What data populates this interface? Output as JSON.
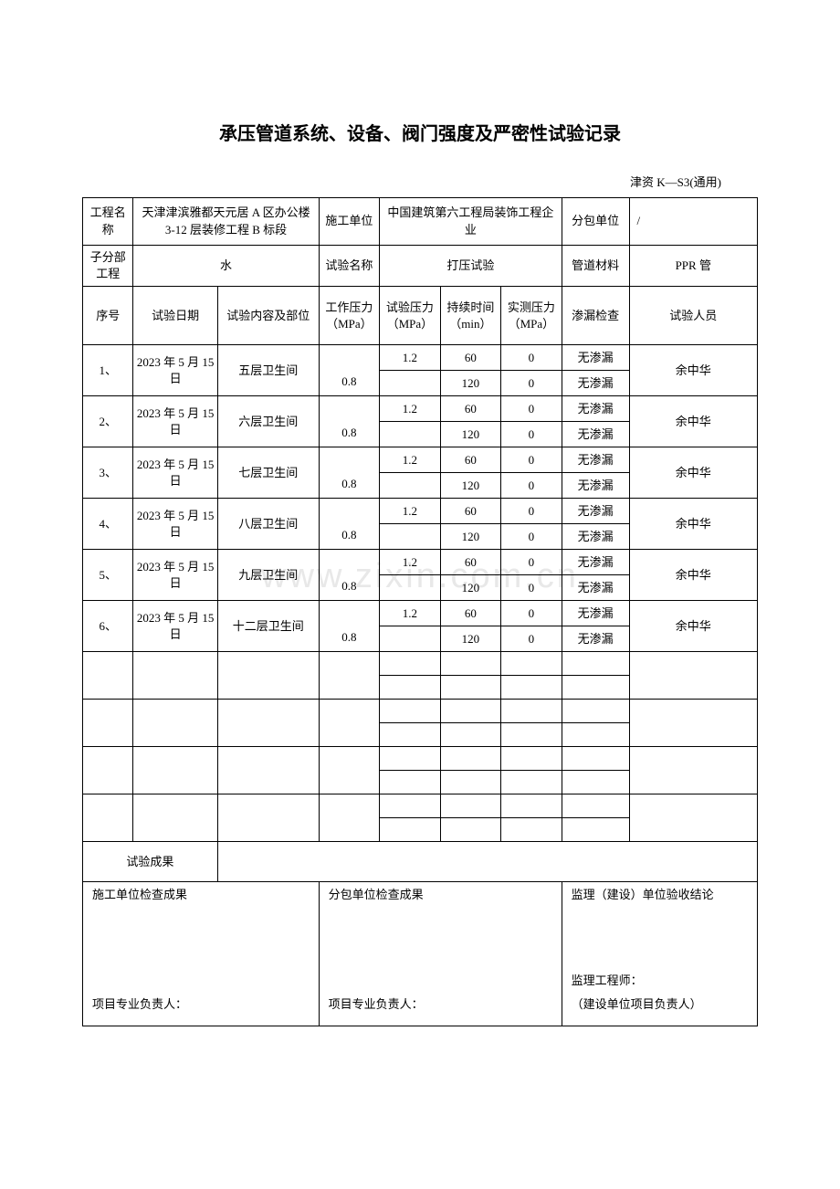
{
  "title": "承压管道系统、设备、阀门强度及严密性试验记录",
  "subtitle": "津资 K—S3(通用)",
  "watermark": "www.zixin.com.cn",
  "labels": {
    "project_name": "工程名称",
    "constructor": "施工单位",
    "subcontractor": "分包单位",
    "sub_project": "子分部工程",
    "test_name": "试验名称",
    "pipe_material": "管道材料",
    "seq": "序号",
    "test_date": "试验日期",
    "test_content": "试验内容及部位",
    "work_pressure": "工作压力（MPa）",
    "test_pressure": "试验压力（MPa）",
    "duration": "持续时间（min）",
    "measured_pressure": "实测压力（MPa）",
    "leak_check": "渗漏检查",
    "tester": "试验人员",
    "test_result": "试验成果",
    "constructor_check": "施工单位检查成果",
    "subcontractor_check": "分包单位检查成果",
    "supervisor_conclusion": "监理（建设）单位验收结论",
    "project_lead": "项目专业负责人：",
    "supervisor_engineer": "监理工程师：",
    "build_unit_lead": "（建设单位项目负责人）"
  },
  "header": {
    "project_name_value": "天津津滨雅都天元居 A 区办公楼 3-12 层装修工程 B 标段",
    "constructor_value": "中国建筑第六工程局装饰工程企业",
    "subcontractor_value": "/",
    "sub_project_value": "水",
    "test_name_value": "打压试验",
    "pipe_material_value": "PPR 管"
  },
  "rows": [
    {
      "seq": "1、",
      "date": "2023 年 5 月 15 日",
      "content": "五层卫生间",
      "work": "0.8",
      "a": {
        "tp": "1.2",
        "dur": "60",
        "mp": "0",
        "leak": "无渗漏"
      },
      "b": {
        "tp": "",
        "dur": "120",
        "mp": "0",
        "leak": "无渗漏"
      },
      "person": "余中华"
    },
    {
      "seq": "2、",
      "date": "2023 年 5 月 15 日",
      "content": "六层卫生间",
      "work": "0.8",
      "a": {
        "tp": "1.2",
        "dur": "60",
        "mp": "0",
        "leak": "无渗漏"
      },
      "b": {
        "tp": "",
        "dur": "120",
        "mp": "0",
        "leak": "无渗漏"
      },
      "person": "余中华"
    },
    {
      "seq": "3、",
      "date": "2023 年 5 月 15 日",
      "content": "七层卫生间",
      "work": "0.8",
      "a": {
        "tp": "1.2",
        "dur": "60",
        "mp": "0",
        "leak": "无渗漏"
      },
      "b": {
        "tp": "",
        "dur": "120",
        "mp": "0",
        "leak": "无渗漏"
      },
      "person": "余中华"
    },
    {
      "seq": "4、",
      "date": "2023 年 5 月 15 日",
      "content": "八层卫生间",
      "work": "0.8",
      "a": {
        "tp": "1.2",
        "dur": "60",
        "mp": "0",
        "leak": "无渗漏"
      },
      "b": {
        "tp": "",
        "dur": "120",
        "mp": "0",
        "leak": "无渗漏"
      },
      "person": "余中华"
    },
    {
      "seq": "5、",
      "date": "2023 年 5 月 15 日",
      "content": "九层卫生间",
      "work": "0.8",
      "a": {
        "tp": "1.2",
        "dur": "60",
        "mp": "0",
        "leak": "无渗漏"
      },
      "b": {
        "tp": "",
        "dur": "120",
        "mp": "0",
        "leak": "无渗漏"
      },
      "person": "余中华"
    },
    {
      "seq": "6、",
      "date": "2023 年 5 月 15 日",
      "content": "十二层卫生间",
      "work": "0.8",
      "a": {
        "tp": "1.2",
        "dur": "60",
        "mp": "0",
        "leak": "无渗漏"
      },
      "b": {
        "tp": "",
        "dur": "120",
        "mp": "0",
        "leak": "无渗漏"
      },
      "person": "余中华"
    }
  ]
}
